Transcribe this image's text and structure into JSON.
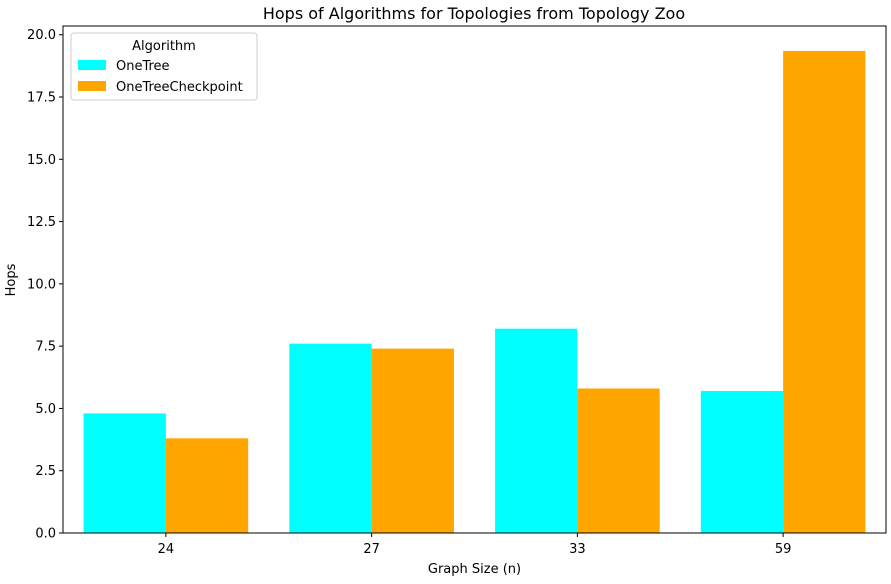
{
  "chart_data": {
    "type": "bar",
    "title": "Hops of Algorithms for Topologies from Topology Zoo",
    "xlabel": "Graph Size (n)",
    "ylabel": "Hops",
    "categories": [
      "24",
      "27",
      "33",
      "59"
    ],
    "ylim": [
      0,
      20.35
    ],
    "yticks": [
      "0.0",
      "2.5",
      "5.0",
      "7.5",
      "10.0",
      "12.5",
      "15.0",
      "17.5",
      "20.0"
    ],
    "grid": false,
    "legend": {
      "title": "Algorithm",
      "placement": "top-left"
    },
    "series": [
      {
        "name": "OneTree",
        "color": "#00ffff",
        "values": [
          4.8,
          7.6,
          8.2,
          5.7
        ]
      },
      {
        "name": "OneTreeCheckpoint",
        "color": "#ffa500",
        "values": [
          3.8,
          7.4,
          5.8,
          19.35
        ]
      }
    ]
  }
}
